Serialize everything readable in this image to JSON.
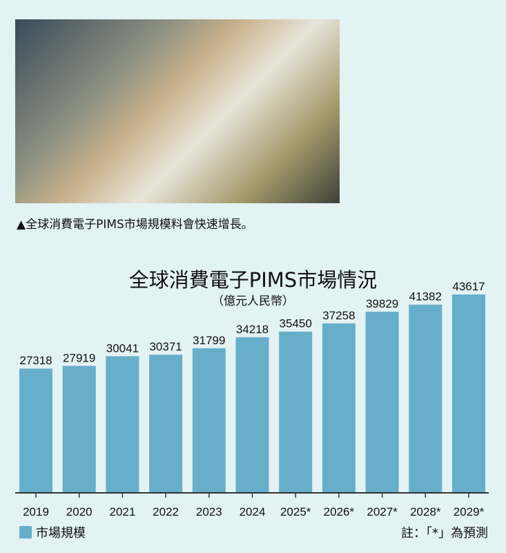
{
  "photo": {
    "description_icon": "factory-machine-photo"
  },
  "caption": "▲全球消費電子PIMS市場規模料會快速增長。",
  "chart_data": {
    "type": "bar",
    "title": "全球消費電子PIMS市場情況",
    "subtitle": "（億元人民幣）",
    "categories": [
      "2019",
      "2020",
      "2021",
      "2022",
      "2023",
      "2024",
      "2025*",
      "2026*",
      "2027*",
      "2028*",
      "2029*"
    ],
    "series": [
      {
        "name": "市場規模",
        "values": [
          27318,
          27919,
          30041,
          30371,
          31799,
          34218,
          35450,
          37258,
          39829,
          41382,
          43617
        ]
      }
    ],
    "ylim": [
      0,
      43617
    ],
    "grid": false,
    "legend": "bottom-left",
    "colors": {
      "bar": "#67aecb",
      "background": "#e3f2f3",
      "axis": "#333333"
    }
  },
  "note": "註：「*」為預測"
}
